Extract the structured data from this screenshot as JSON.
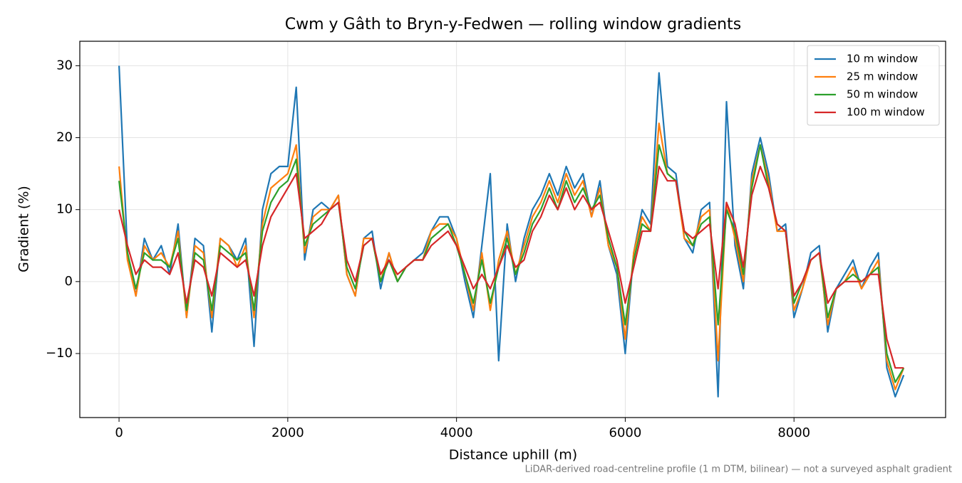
{
  "chart_data": {
    "type": "line",
    "title": "Cwm y Gâth to Bryn-y-Fedwen — rolling window gradients",
    "x_label": "Distance uphill (m)",
    "y_label": "Gradient (%)",
    "note": "LiDAR-derived road-centreline profile (1 m DTM, bilinear) — not a surveyed asphalt gradient",
    "x": [
      0,
      100,
      200,
      300,
      400,
      500,
      600,
      700,
      800,
      900,
      1000,
      1100,
      1200,
      1300,
      1400,
      1500,
      1600,
      1700,
      1800,
      1900,
      2000,
      2100,
      2200,
      2300,
      2400,
      2500,
      2600,
      2700,
      2800,
      2900,
      3000,
      3100,
      3200,
      3300,
      3400,
      3500,
      3600,
      3700,
      3800,
      3900,
      4000,
      4100,
      4200,
      4300,
      4400,
      4500,
      4600,
      4700,
      4800,
      4900,
      5000,
      5100,
      5200,
      5300,
      5400,
      5500,
      5600,
      5700,
      5800,
      5900,
      6000,
      6100,
      6200,
      6300,
      6400,
      6500,
      6600,
      6700,
      6800,
      6900,
      7000,
      7100,
      7200,
      7300,
      7400,
      7500,
      7600,
      7700,
      7800,
      7900,
      8000,
      8100,
      8200,
      8300,
      8400,
      8500,
      8600,
      8700,
      8800,
      8900,
      9000,
      9100,
      9200,
      9300
    ],
    "series": [
      {
        "name": "10 m window",
        "color": "#1f77b4",
        "values": [
          30,
          4,
          -2,
          6,
          3,
          5,
          1,
          8,
          -5,
          6,
          5,
          -7,
          6,
          5,
          3,
          6,
          -9,
          10,
          15,
          16,
          16,
          27,
          3,
          10,
          11,
          10,
          12,
          1,
          -2,
          6,
          7,
          -1,
          4,
          0,
          2,
          3,
          4,
          7,
          9,
          9,
          6,
          0,
          -5,
          5,
          15,
          -11,
          8,
          0,
          6,
          10,
          12,
          15,
          12,
          16,
          13,
          15,
          9,
          14,
          5,
          1,
          -10,
          4,
          10,
          8,
          29,
          16,
          15,
          6,
          4,
          10,
          11,
          -16,
          25,
          5,
          -1,
          15,
          20,
          15,
          7,
          8,
          -5,
          -1,
          4,
          5,
          -7,
          -1,
          1,
          3,
          -1,
          2,
          4,
          -12,
          -16,
          -13
        ]
      },
      {
        "name": "25 m window",
        "color": "#ff7f0e",
        "values": [
          16,
          3,
          -2,
          5,
          3,
          4,
          2,
          7,
          -5,
          5,
          4,
          -5,
          6,
          5,
          2,
          5,
          -5,
          8,
          13,
          14,
          15,
          19,
          4,
          9,
          10,
          10,
          12,
          1,
          -2,
          6,
          6,
          0,
          4,
          0,
          2,
          3,
          3,
          7,
          8,
          8,
          6,
          1,
          -4,
          4,
          -4,
          3,
          7,
          1,
          5,
          9,
          11,
          14,
          11,
          15,
          12,
          14,
          9,
          13,
          5,
          2,
          -8,
          4,
          9,
          7,
          22,
          15,
          14,
          6,
          5,
          9,
          10,
          -11,
          11,
          6,
          0,
          14,
          19,
          14,
          7,
          7,
          -4,
          -1,
          3,
          4,
          -6,
          -1,
          0,
          2,
          -1,
          1,
          3,
          -11,
          -15,
          -12
        ]
      },
      {
        "name": "50 m window",
        "color": "#2ca02c",
        "values": [
          14,
          4,
          -1,
          4,
          3,
          3,
          2,
          6,
          -4,
          4,
          3,
          -4,
          5,
          4,
          3,
          4,
          -4,
          7,
          11,
          13,
          14,
          17,
          5,
          8,
          9,
          10,
          11,
          2,
          -1,
          5,
          6,
          0,
          3,
          0,
          2,
          3,
          3,
          6,
          7,
          8,
          5,
          1,
          -3,
          3,
          -3,
          2,
          6,
          1,
          4,
          8,
          10,
          13,
          10,
          14,
          11,
          13,
          10,
          12,
          6,
          2,
          -6,
          3,
          8,
          7,
          19,
          15,
          14,
          7,
          5,
          8,
          9,
          -6,
          10,
          7,
          1,
          13,
          19,
          13,
          8,
          7,
          -3,
          0,
          3,
          4,
          -5,
          -1,
          0,
          1,
          0,
          1,
          2,
          -10,
          -14,
          -12
        ]
      },
      {
        "name": "100 m window",
        "color": "#d62728",
        "values": [
          10,
          5,
          1,
          3,
          2,
          2,
          1,
          4,
          -3,
          3,
          2,
          -2,
          4,
          3,
          2,
          3,
          -2,
          5,
          9,
          11,
          13,
          15,
          6,
          7,
          8,
          10,
          11,
          3,
          0,
          5,
          6,
          1,
          3,
          1,
          2,
          3,
          3,
          5,
          6,
          7,
          5,
          2,
          -1,
          1,
          -1,
          2,
          5,
          2,
          3,
          7,
          9,
          12,
          10,
          13,
          10,
          12,
          10,
          11,
          7,
          3,
          -3,
          2,
          7,
          7,
          16,
          14,
          14,
          7,
          6,
          7,
          8,
          -1,
          11,
          8,
          2,
          12,
          16,
          13,
          8,
          7,
          -2,
          0,
          3,
          4,
          -3,
          -1,
          0,
          0,
          0,
          1,
          1,
          -8,
          -12,
          -12
        ]
      }
    ],
    "xlim": [
      -465,
      9797
    ],
    "ylim": [
      -18.9,
      33.4
    ],
    "xticks": [
      0,
      2000,
      4000,
      6000,
      8000
    ],
    "yticks": [
      {
        "value": -10,
        "label": "−10"
      },
      0,
      10,
      20,
      30
    ],
    "grid": true,
    "legend": "upper right"
  }
}
